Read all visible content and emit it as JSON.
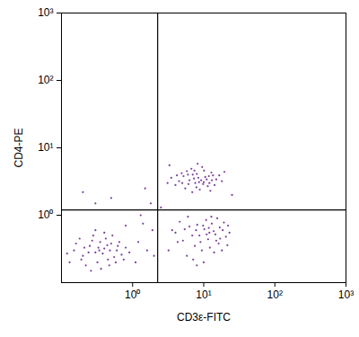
{
  "chart_data": {
    "type": "scatter",
    "x_label": "CD3ε-FITC",
    "y_label": "CD4-PE",
    "log": true,
    "color": "#6b2a8f",
    "marker": "dot",
    "xlim": [
      0.1,
      1000
    ],
    "ylim": [
      0.1,
      1000
    ],
    "xticks": [
      {
        "value": 1,
        "label": "10⁰"
      },
      {
        "value": 10,
        "label": "10¹"
      },
      {
        "value": 100,
        "label": "10²"
      },
      {
        "value": 1000,
        "label": "10³"
      }
    ],
    "yticks": [
      {
        "value": 1,
        "label": "10⁰"
      },
      {
        "value": 10,
        "label": "10¹"
      },
      {
        "value": 100,
        "label": "10²"
      },
      {
        "value": 1000,
        "label": "10³"
      }
    ],
    "quadrant_gate": {
      "x": 2.25,
      "y": 1.2
    },
    "x": [
      4.5,
      5.2,
      6.1,
      7.3,
      8.0,
      9.2,
      10.5,
      12.0,
      13.5,
      15.0,
      5.8,
      6.7,
      7.9,
      8.8,
      10.1,
      11.4,
      4.0,
      3.5,
      4.9,
      6.3,
      7.0,
      7.6,
      8.4,
      9.8,
      11.0,
      12.8,
      14.2,
      16.5,
      18.0,
      5.5,
      6.9,
      9.5,
      3.1,
      4.2,
      5.0,
      6.0,
      7.4,
      8.6,
      10.0,
      11.8,
      13.0,
      19.5,
      3.3,
      8.2,
      12.4,
      4.0,
      5.1,
      6.3,
      7.5,
      8.7,
      10.2,
      11.5,
      13.0,
      14.6,
      16.2,
      18.5,
      20.5,
      22.0,
      3.2,
      4.6,
      5.8,
      6.9,
      8.1,
      9.4,
      10.8,
      12.2,
      13.8,
      15.5,
      17.0,
      19.2,
      21.5,
      3.6,
      5.4,
      7.1,
      9.0,
      11.0,
      12.8,
      14.0,
      16.8,
      8.0,
      10.0,
      6.0,
      9.8,
      12.0,
      15.0,
      4.3,
      7.8,
      11.8,
      23.0,
      18.0,
      0.15,
      0.2,
      0.25,
      0.3,
      0.35,
      0.4,
      0.45,
      0.5,
      0.6,
      0.7,
      0.18,
      0.22,
      0.28,
      0.32,
      0.38,
      0.42,
      0.48,
      0.55,
      0.65,
      0.8,
      0.13,
      0.16,
      0.24,
      0.27,
      0.33,
      0.36,
      0.44,
      0.52,
      0.58,
      0.9,
      0.12,
      0.19,
      0.26,
      0.3,
      0.4,
      0.47,
      0.62,
      0.75,
      0.34,
      0.21,
      1.2,
      1.6,
      1.9,
      1.4,
      2.0,
      1.1,
      0.3,
      0.5,
      1.5,
      0.2,
      1.8,
      2.5,
      25,
      0.8,
      1.3
    ],
    "y": [
      3.2,
      3.8,
      2.9,
      3.5,
      4.1,
      3.3,
      3.7,
      3.0,
      3.9,
      3.4,
      4.5,
      4.9,
      2.6,
      2.4,
      4.6,
      2.7,
      2.8,
      3.6,
      4.2,
      3.3,
      4.0,
      3.0,
      3.6,
      2.9,
      3.4,
      4.3,
      2.8,
      3.9,
      3.2,
      2.5,
      2.2,
      5.2,
      3.0,
      3.9,
      3.0,
      4.0,
      4.6,
      3.1,
      3.1,
      3.8,
      3.3,
      4.4,
      5.5,
      5.8,
      2.3,
      0.55,
      0.42,
      0.68,
      0.35,
      0.5,
      0.62,
      0.44,
      0.75,
      0.52,
      0.38,
      0.6,
      0.48,
      0.7,
      0.3,
      0.8,
      0.25,
      0.5,
      0.72,
      0.3,
      0.85,
      0.33,
      0.58,
      0.9,
      0.45,
      0.78,
      0.36,
      0.6,
      0.62,
      0.22,
      0.4,
      0.52,
      0.95,
      0.28,
      0.66,
      0.18,
      0.2,
      0.95,
      0.7,
      0.55,
      0.42,
      0.4,
      0.6,
      0.65,
      0.55,
      0.3,
      0.3,
      0.25,
      0.35,
      0.28,
      0.4,
      0.32,
      0.22,
      0.38,
      0.3,
      0.26,
      0.45,
      0.18,
      0.5,
      0.2,
      0.27,
      0.45,
      0.3,
      0.24,
      0.4,
      0.33,
      0.2,
      0.38,
      0.28,
      0.42,
      0.33,
      0.16,
      0.36,
      0.5,
      0.2,
      0.28,
      0.27,
      0.22,
      0.15,
      0.6,
      0.55,
      0.18,
      0.35,
      0.22,
      0.3,
      0.33,
      0.4,
      0.3,
      0.6,
      0.75,
      0.25,
      0.2,
      1.5,
      1.8,
      2.5,
      2.2,
      1.5,
      1.3,
      2.0,
      0.7,
      1.0
    ]
  }
}
